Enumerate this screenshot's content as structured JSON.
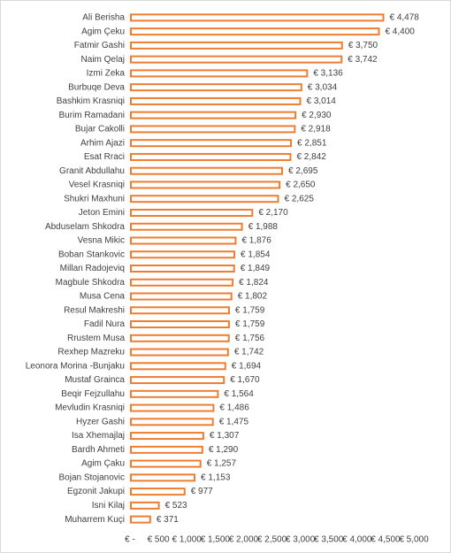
{
  "chart_data": {
    "type": "hbar",
    "color": "#ed7d31",
    "categories": [
      "Ali Berisha",
      "Agim Çeku",
      "Fatmir Gashi",
      "Naim Qelaj",
      "Izmi Zeka",
      "Burbuqe Deva",
      "Bashkim Krasniqi",
      "Burim Ramadani",
      "Bujar Cakolli",
      "Arhim Ajazi",
      "Esat Rraci",
      "Granit Abdullahu",
      "Vesel Krasniqi",
      "Shukri Maxhuni",
      "Jeton Emini",
      "Abduselam Shkodra",
      "Vesna Mikic",
      "Boban Stankovic",
      "Millan Radojeviq",
      "Magbule Shkodra",
      "Musa Cena",
      "Resul Makreshi",
      "Fadil Nura",
      "Rrustem Musa",
      "Rexhep Mazreku",
      "Leonora Morina -Bunjaku",
      "Mustaf Grainca",
      "Beqir Fejzullahu",
      "Mevludin Krasniqi",
      "Hyzer Gashi",
      "Isa Xhemajlaj",
      "Bardh Ahmeti",
      "Agim Çaku",
      "Bojan Stojanovic",
      "Egzonit Jakupi",
      "Isni Kilaj",
      "Muharrem Kuçi"
    ],
    "values": [
      4478,
      4400,
      3750,
      3742,
      3136,
      3034,
      3014,
      2930,
      2918,
      2851,
      2842,
      2695,
      2650,
      2625,
      2170,
      1988,
      1876,
      1854,
      1849,
      1824,
      1802,
      1759,
      1759,
      1756,
      1742,
      1694,
      1670,
      1564,
      1486,
      1475,
      1307,
      1290,
      1257,
      1153,
      977,
      523,
      371
    ],
    "value_labels": [
      "€ 4,478",
      "€ 4,400",
      "€ 3,750",
      "€ 3,742",
      "€ 3,136",
      "€ 3,034",
      "€ 3,014",
      "€ 2,930",
      "€ 2,918",
      "€ 2,851",
      "€ 2,842",
      "€ 2,695",
      "€ 2,650",
      "€ 2,625",
      "€ 2,170",
      "€ 1,988",
      "€ 1,876",
      "€ 1,854",
      "€ 1,849",
      "€ 1,824",
      "€ 1,802",
      "€ 1,759",
      "€ 1,759",
      "€ 1,756",
      "€ 1,742",
      "€ 1,694",
      "€ 1,670",
      "€ 1,564",
      "€ 1,486",
      "€ 1,475",
      "€ 1,307",
      "€ 1,290",
      "€ 1,257",
      "€ 1,153",
      "€ 977",
      "€ 523",
      "€ 371"
    ],
    "xlim": [
      0,
      5000
    ],
    "xticks": [
      {
        "value": 0,
        "label": "€ -"
      },
      {
        "value": 500,
        "label": "€ 500"
      },
      {
        "value": 1000,
        "label": "€ 1,000"
      },
      {
        "value": 1500,
        "label": "€ 1,500"
      },
      {
        "value": 2000,
        "label": "€ 2,000"
      },
      {
        "value": 2500,
        "label": "€ 2,500"
      },
      {
        "value": 3000,
        "label": "€ 3,000"
      },
      {
        "value": 3500,
        "label": "€ 3,500"
      },
      {
        "value": 4000,
        "label": "€ 4,000"
      },
      {
        "value": 4500,
        "label": "€ 4,500"
      },
      {
        "value": 5000,
        "label": "€ 5,000"
      }
    ]
  }
}
